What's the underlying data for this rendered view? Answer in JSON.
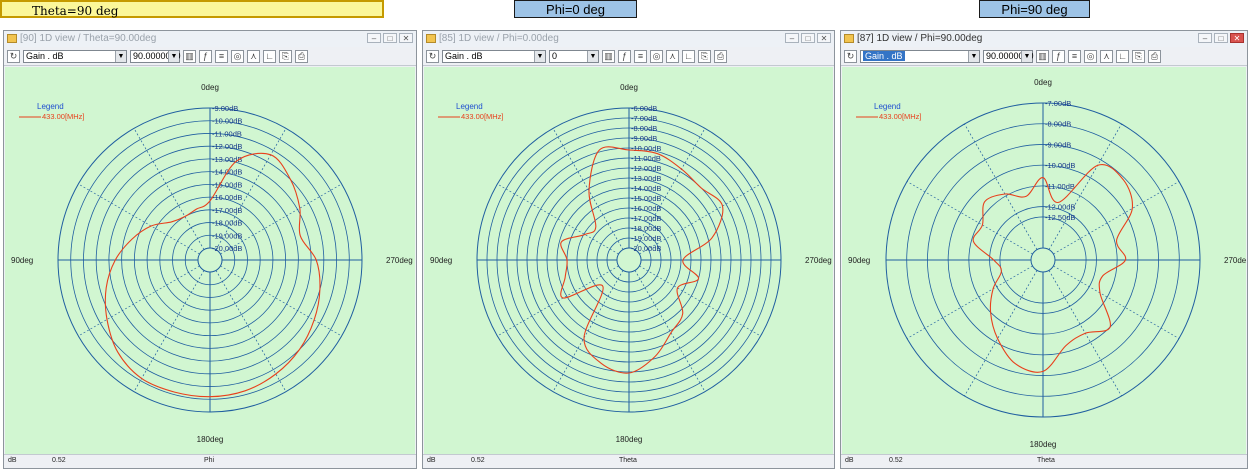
{
  "labels": {
    "theta90": "Theta=90 deg",
    "phi0": "Phi=0 deg",
    "phi90": "Phi=90 deg"
  },
  "panels": [
    {
      "window_title": "[90] 1D view / Theta=90.00deg",
      "toolbar": {
        "quantity": "Gain . dB",
        "angle_value": "90.0000000"
      },
      "status": {
        "unit": "dB",
        "value": "0.52",
        "axis": "Phi"
      }
    },
    {
      "window_title": "[85] 1D view / Phi=0.00deg",
      "toolbar": {
        "quantity": "Gain . dB",
        "angle_value": "0"
      },
      "status": {
        "unit": "dB",
        "value": "0.52",
        "axis": "Theta"
      }
    },
    {
      "window_title": "[87] 1D view / Phi=90.00deg",
      "toolbar": {
        "quantity": "Gain . dB",
        "angle_value": "90.0000000"
      },
      "status": {
        "unit": "dB",
        "value": "0.52",
        "axis": "Theta"
      }
    }
  ],
  "colors": {
    "plot_bg": "#d1f6d1",
    "grid": "#1f5ea0",
    "trace": "#e8401c",
    "legend_title": "#1f4fd0"
  },
  "chart_data": [
    {
      "type": "polar-line",
      "legend_title": "Legend",
      "series": [
        {
          "name": "433.00[MHz]",
          "color": "#e8401c"
        }
      ],
      "angle_labels": {
        "top": "0deg",
        "left": "90deg",
        "right": "270deg",
        "bottom": "180deg"
      },
      "radial_labels": [
        "-9.00dB",
        "-10.00dB",
        "-11.00dB",
        "-12.00dB",
        "-13.00dB",
        "-14.00dB",
        "-15.00dB",
        "-16.00dB",
        "-17.00dB",
        "-18.00dB",
        "-19.00dB",
        "-20.00dB"
      ],
      "r_range": [
        -20,
        -9
      ],
      "r_ticks": [
        -9,
        -10,
        -11,
        -12,
        -13,
        -14,
        -15,
        -16,
        -17,
        -18,
        -19,
        -20
      ],
      "pattern": [
        [
          0,
          -16.3
        ],
        [
          15,
          -16.8
        ],
        [
          30,
          -17.0
        ],
        [
          45,
          -16.7
        ],
        [
          60,
          -15.6
        ],
        [
          75,
          -14.6
        ],
        [
          90,
          -13.5
        ],
        [
          105,
          -12.5
        ],
        [
          120,
          -11.6
        ],
        [
          135,
          -10.7
        ],
        [
          150,
          -10.2
        ],
        [
          165,
          -10.2
        ],
        [
          180,
          -10.2
        ],
        [
          195,
          -10.3
        ],
        [
          210,
          -10.6
        ],
        [
          225,
          -11.0
        ],
        [
          240,
          -11.5
        ],
        [
          255,
          -12.0
        ],
        [
          270,
          -12.6
        ],
        [
          285,
          -13.6
        ],
        [
          300,
          -12.8
        ],
        [
          315,
          -12.0
        ],
        [
          330,
          -11.4
        ],
        [
          345,
          -12.9
        ]
      ]
    },
    {
      "type": "polar-line",
      "legend_title": "Legend",
      "series": [
        {
          "name": "433.00[MHz]",
          "color": "#e8401c"
        }
      ],
      "angle_labels": {
        "top": "0deg",
        "left": "90deg",
        "right": "270deg",
        "bottom": "180deg"
      },
      "radial_labels": [
        "-6.00dB",
        "-7.00dB",
        "-8.00dB",
        "-9.00dB",
        "-10.00dB",
        "-11.00dB",
        "-12.00dB",
        "-13.00dB",
        "-14.00dB",
        "-15.00dB",
        "-16.00dB",
        "-17.00dB",
        "-18.00dB",
        "-19.00dB",
        "-20.00dB"
      ],
      "r_range": [
        -20,
        -6
      ],
      "r_ticks": [
        -6,
        -7,
        -8,
        -9,
        -10,
        -11,
        -12,
        -13,
        -14,
        -15,
        -16,
        -17,
        -18,
        -19,
        -20
      ],
      "pattern": [
        [
          0,
          -10.2
        ],
        [
          15,
          -9.8
        ],
        [
          30,
          -13.2
        ],
        [
          45,
          -16.5
        ],
        [
          60,
          -16.1
        ],
        [
          75,
          -14.2
        ],
        [
          90,
          -15.0
        ],
        [
          105,
          -14.6
        ],
        [
          120,
          -13.6
        ],
        [
          135,
          -17.5
        ],
        [
          150,
          -12.2
        ],
        [
          165,
          -10.5
        ],
        [
          180,
          -9.9
        ],
        [
          195,
          -11.2
        ],
        [
          210,
          -12.8
        ],
        [
          225,
          -13.6
        ],
        [
          240,
          -15.6
        ],
        [
          255,
          -14.0
        ],
        [
          270,
          -15.8
        ],
        [
          285,
          -12.6
        ],
        [
          300,
          -10.4
        ],
        [
          315,
          -11.0
        ],
        [
          330,
          -10.7
        ],
        [
          345,
          -10.2
        ]
      ]
    },
    {
      "type": "polar-line",
      "legend_title": "Legend",
      "series": [
        {
          "name": "433.00[MHz]",
          "color": "#e8401c"
        }
      ],
      "angle_labels": {
        "top": "0deg",
        "left": "90deg",
        "right": "270deg",
        "bottom": "180deg"
      },
      "radial_labels": [
        "-7.00dB",
        "-8.00dB",
        "-9.00dB",
        "-10.00dB",
        "-11.00dB",
        "-12.00dB",
        "-12.50dB"
      ],
      "r_range": [
        -14,
        -7
      ],
      "r_ticks": [
        -7,
        -8,
        -9,
        -10,
        -11,
        -12,
        -12.5
      ],
      "pattern": [
        [
          0,
          -10.6
        ],
        [
          15,
          -11.4
        ],
        [
          30,
          -10.9
        ],
        [
          45,
          -10.6
        ],
        [
          60,
          -11.2
        ],
        [
          75,
          -11.1
        ],
        [
          90,
          -12.2
        ],
        [
          105,
          -12.5
        ],
        [
          120,
          -11.8
        ],
        [
          135,
          -11.0
        ],
        [
          150,
          -10.2
        ],
        [
          165,
          -9.4
        ],
        [
          180,
          -9.2
        ],
        [
          195,
          -10.3
        ],
        [
          210,
          -10.5
        ],
        [
          225,
          -10.0
        ],
        [
          240,
          -11.4
        ],
        [
          255,
          -11.6
        ],
        [
          270,
          -10.6
        ],
        [
          285,
          -10.9
        ],
        [
          300,
          -9.6
        ],
        [
          315,
          -9.1
        ],
        [
          330,
          -9.3
        ],
        [
          345,
          -11.7
        ]
      ]
    }
  ]
}
